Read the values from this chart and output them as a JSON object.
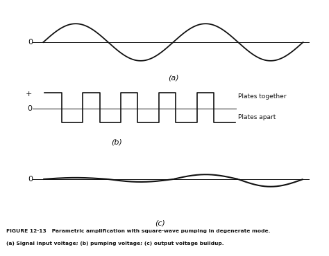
{
  "bg_color": "#ffffff",
  "line_color": "#111111",
  "caption_line1": "FIGURE 12-13   Parametric amplification with square-wave pumping in degenerate mode.",
  "caption_line2": "(a) Signal input voltage; (b) pumping voltage; (c) output voltage buildup.",
  "label_a": "(a)",
  "label_b": "(b)",
  "label_c": "(c)",
  "zero_label": "0",
  "plus_label": "+",
  "plates_together": "Plates together",
  "plates_apart": "Plates apart",
  "sine_a_amplitude": 1.0,
  "sine_a_periods": 2,
  "sq_high": 0.6,
  "sq_low": -0.5,
  "sq_num_cycles": 5,
  "sq_duty": 0.45,
  "grow_amplitudes": [
    0.12,
    0.22,
    0.38,
    0.6,
    0.9,
    1.3,
    1.75,
    2.25
  ]
}
